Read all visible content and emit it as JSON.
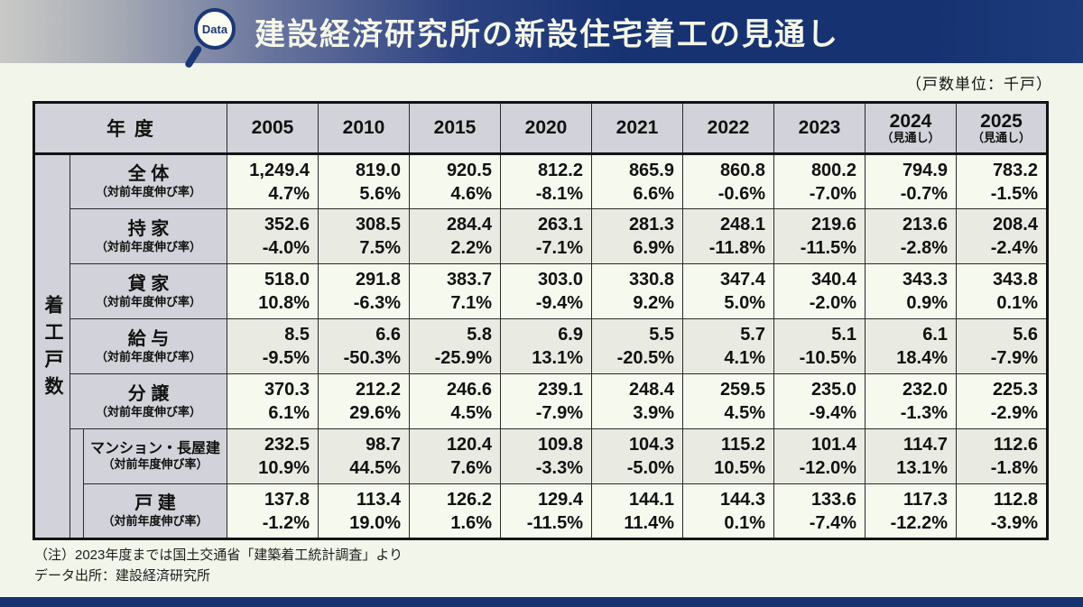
{
  "header": {
    "badge_label": "Data",
    "title": "建設経済研究所の新設住宅着工の見通し"
  },
  "unit_note": "（戸数単位：千戸）",
  "chart_data": {
    "type": "table",
    "title": "建設経済研究所の新設住宅着工の見通し",
    "unit": "千戸",
    "corner_label": "年 度",
    "side_label": "着工戸数",
    "growth_sublabel": "（対前年度伸び率）",
    "columns": [
      {
        "year": "2005",
        "note": ""
      },
      {
        "year": "2010",
        "note": ""
      },
      {
        "year": "2015",
        "note": ""
      },
      {
        "year": "2020",
        "note": ""
      },
      {
        "year": "2021",
        "note": ""
      },
      {
        "year": "2022",
        "note": ""
      },
      {
        "year": "2023",
        "note": ""
      },
      {
        "year": "2024",
        "note": "（見通し）"
      },
      {
        "year": "2025",
        "note": "（見通し）"
      }
    ],
    "rows": [
      {
        "label": "全 体",
        "indent": 0,
        "values": [
          "1,249.4",
          "819.0",
          "920.5",
          "812.2",
          "865.9",
          "860.8",
          "800.2",
          "794.9",
          "783.2"
        ],
        "growth": [
          "4.7%",
          "5.6%",
          "4.6%",
          "-8.1%",
          "6.6%",
          "-0.6%",
          "-7.0%",
          "-0.7%",
          "-1.5%"
        ]
      },
      {
        "label": "持 家",
        "indent": 1,
        "values": [
          "352.6",
          "308.5",
          "284.4",
          "263.1",
          "281.3",
          "248.1",
          "219.6",
          "213.6",
          "208.4"
        ],
        "growth": [
          "-4.0%",
          "7.5%",
          "2.2%",
          "-7.1%",
          "6.9%",
          "-11.8%",
          "-11.5%",
          "-2.8%",
          "-2.4%"
        ]
      },
      {
        "label": "貸 家",
        "indent": 1,
        "values": [
          "518.0",
          "291.8",
          "383.7",
          "303.0",
          "330.8",
          "347.4",
          "340.4",
          "343.3",
          "343.8"
        ],
        "growth": [
          "10.8%",
          "-6.3%",
          "7.1%",
          "-9.4%",
          "9.2%",
          "5.0%",
          "-2.0%",
          "0.9%",
          "0.1%"
        ]
      },
      {
        "label": "給 与",
        "indent": 1,
        "values": [
          "8.5",
          "6.6",
          "5.8",
          "6.9",
          "5.5",
          "5.7",
          "5.1",
          "6.1",
          "5.6"
        ],
        "growth": [
          "-9.5%",
          "-50.3%",
          "-25.9%",
          "13.1%",
          "-20.5%",
          "4.1%",
          "-10.5%",
          "18.4%",
          "-7.9%"
        ]
      },
      {
        "label": "分 譲",
        "indent": 1,
        "values": [
          "370.3",
          "212.2",
          "246.6",
          "239.1",
          "248.4",
          "259.5",
          "235.0",
          "232.0",
          "225.3"
        ],
        "growth": [
          "6.1%",
          "29.6%",
          "4.5%",
          "-7.9%",
          "3.9%",
          "4.5%",
          "-9.4%",
          "-1.3%",
          "-2.9%"
        ]
      },
      {
        "label": "マンション・長屋建",
        "indent": 2,
        "values": [
          "232.5",
          "98.7",
          "120.4",
          "109.8",
          "104.3",
          "115.2",
          "101.4",
          "114.7",
          "112.6"
        ],
        "growth": [
          "10.9%",
          "44.5%",
          "7.6%",
          "-3.3%",
          "-5.0%",
          "10.5%",
          "-12.0%",
          "13.1%",
          "-1.8%"
        ]
      },
      {
        "label": "戸 建",
        "indent": 2,
        "values": [
          "137.8",
          "113.4",
          "126.2",
          "129.4",
          "144.1",
          "144.3",
          "133.6",
          "117.3",
          "112.8"
        ],
        "growth": [
          "-1.2%",
          "19.0%",
          "1.6%",
          "-11.5%",
          "11.4%",
          "0.1%",
          "-7.4%",
          "-12.2%",
          "-3.9%"
        ]
      }
    ]
  },
  "footnotes": [
    "（注）2023年度までは国土交通省「建築着工統計調査」より",
    "データ出所：建設経済研究所"
  ],
  "colors": {
    "navy": "#163271",
    "header_gray": "#d2d3da",
    "row_cream": "#f6f9ee",
    "row_gray": "#e9ebe2",
    "page_bg": "#f2f5e9"
  }
}
